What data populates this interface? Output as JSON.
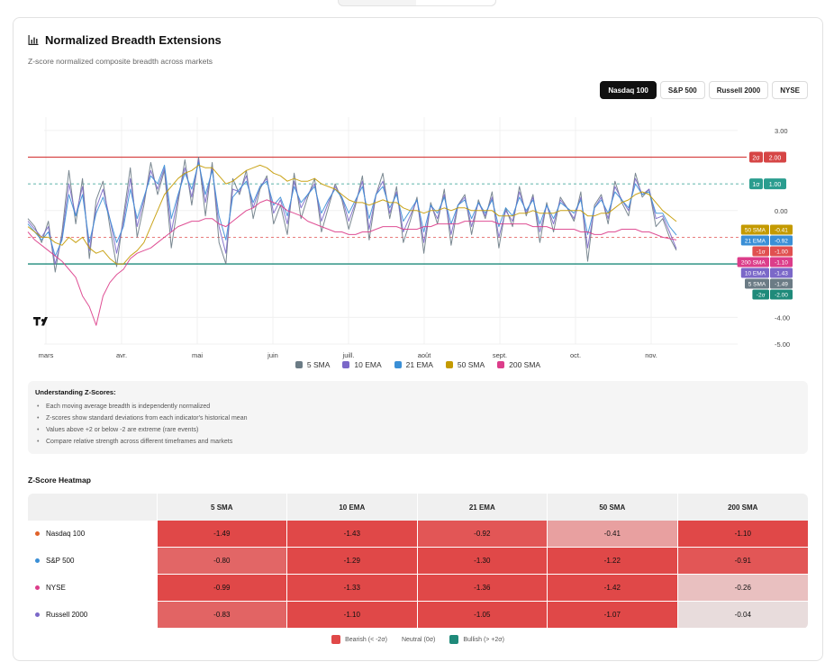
{
  "title": "Normalized Breadth Extensions",
  "subtitle": "Z-score normalized composite breadth across markets",
  "markets": [
    "Nasdaq 100",
    "S&P 500",
    "Russell 2000",
    "NYSE"
  ],
  "active_market": "Nasdaq 100",
  "colors": {
    "sma5": "#6b7b85",
    "ema10": "#7b68c8",
    "ema21": "#3a8fd6",
    "sma50": "#c49a00",
    "sma200": "#dc3d8a",
    "upper2": "#d64545",
    "upper1": "#2a9d8f",
    "lower1": "#e05050",
    "lower2": "#1f8a7a",
    "bearish": "#e04848",
    "bullish": "#1f8a7a"
  },
  "chart_data": {
    "type": "line",
    "x_ticks": [
      "mars",
      "avr.",
      "mai",
      "juin",
      "juill.",
      "août",
      "sept.",
      "oct.",
      "nov."
    ],
    "ylim": [
      -5,
      3.5
    ],
    "y_ticks": [
      "3.00",
      "0.00",
      "-4.00",
      "-5.00"
    ],
    "y_tick_values": [
      3,
      0,
      -4,
      -5
    ],
    "reference_lines": [
      {
        "label": "2σ",
        "value": "2.00",
        "y": 2,
        "style": "solid",
        "color": "#d64545"
      },
      {
        "label": "1σ",
        "value": "1.00",
        "y": 1,
        "style": "dashed",
        "color": "#2a9d8f"
      },
      {
        "label": "-1σ",
        "value": "-1.00",
        "y": -1,
        "style": "dashed",
        "color": "#e05050"
      },
      {
        "label": "-2σ",
        "value": "-2.00",
        "y": -2,
        "style": "solid",
        "color": "#1f8a7a"
      }
    ],
    "last_value_labels": [
      {
        "name": "50 SMA",
        "value": "-0.41",
        "y": -0.41,
        "color": "#c49a00"
      },
      {
        "name": "21 EMA",
        "value": "-0.92",
        "y": -0.92,
        "color": "#3a8fd6"
      },
      {
        "name": "-1σ",
        "value": "-1.00",
        "y": -1.0,
        "color": "#e05050"
      },
      {
        "name": "200 SMA",
        "value": "-1.10",
        "y": -1.1,
        "color": "#dc3d8a"
      },
      {
        "name": "10 EMA",
        "value": "-1.43",
        "y": -1.43,
        "color": "#7b68c8"
      },
      {
        "name": "5 SMA",
        "value": "-1.49",
        "y": -1.49,
        "color": "#6b7b85"
      },
      {
        "name": "-2σ",
        "value": "-2.00",
        "y": -2.0,
        "color": "#1f8a7a"
      }
    ],
    "series": [
      {
        "name": "5 SMA",
        "color": "#6b7b85",
        "values": [
          -0.3,
          -0.6,
          -1.2,
          -0.4,
          -2.3,
          -0.8,
          1.5,
          -0.5,
          1.2,
          -1.8,
          0.4,
          1.1,
          -0.6,
          -2.1,
          -0.2,
          1.6,
          -1.0,
          0.2,
          1.8,
          0.6,
          1.5,
          -1.4,
          0.3,
          1.9,
          0.2,
          2.0,
          -0.2,
          1.8,
          -1.2,
          -2.0,
          1.2,
          0.6,
          1.5,
          -0.3,
          0.8,
          1.3,
          -0.5,
          0.2,
          -0.9,
          1.4,
          -0.3,
          0.5,
          1.2,
          -0.8,
          0.1,
          1.0,
          0.4,
          -0.7,
          0.2,
          1.3,
          -1.1,
          0.6,
          1.4,
          -0.3,
          0.9,
          -1.2,
          -0.4,
          0.5,
          -1.6,
          0.3,
          -0.5,
          0.8,
          -1.3,
          0.2,
          0.6,
          -0.9,
          0.4,
          -0.3,
          0.7,
          -1.4,
          0.1,
          -0.6,
          0.9,
          -0.2,
          0.6,
          -1.2,
          0.3,
          -0.8,
          0.5,
          0.1,
          -0.4,
          0.7,
          -1.9,
          0.2,
          0.6,
          -0.5,
          1.1,
          0.3,
          -0.2,
          1.4,
          0.5,
          0.8,
          -0.6,
          -0.3,
          -1.0,
          -1.49
        ]
      },
      {
        "name": "10 EMA",
        "color": "#7b68c8",
        "values": [
          -0.4,
          -0.7,
          -1.0,
          -0.6,
          -2.0,
          -1.0,
          1.0,
          -0.2,
          0.9,
          -1.5,
          0.1,
          0.8,
          -0.3,
          -1.6,
          -0.4,
          1.2,
          -0.6,
          0.4,
          1.5,
          0.8,
          1.6,
          -0.8,
          0.5,
          1.6,
          0.5,
          1.9,
          0.3,
          1.6,
          -0.6,
          -1.6,
          0.8,
          0.7,
          1.3,
          0.1,
          0.9,
          1.2,
          -0.1,
          0.4,
          -0.5,
          1.1,
          0.1,
          0.6,
          1.0,
          -0.4,
          0.3,
          0.9,
          0.5,
          -0.4,
          0.3,
          1.1,
          -0.7,
          0.6,
          1.1,
          -0.1,
          0.7,
          -0.8,
          -0.2,
          0.4,
          -1.2,
          0.2,
          -0.3,
          0.6,
          -0.9,
          0.2,
          0.5,
          -0.6,
          0.3,
          -0.2,
          0.5,
          -1.0,
          0.0,
          -0.4,
          0.7,
          -0.1,
          0.5,
          -0.8,
          0.2,
          -0.5,
          0.4,
          0.1,
          -0.3,
          0.5,
          -1.4,
          0.1,
          0.5,
          -0.3,
          0.9,
          0.4,
          0.0,
          1.2,
          0.6,
          0.8,
          -0.3,
          -0.2,
          -0.8,
          -1.43
        ]
      },
      {
        "name": "21 EMA",
        "color": "#3a8fd6",
        "values": [
          -0.5,
          -0.8,
          -1.1,
          -0.8,
          -1.7,
          -1.1,
          0.6,
          -0.2,
          0.6,
          -1.2,
          -0.1,
          0.5,
          -0.3,
          -1.2,
          -0.6,
          0.8,
          -0.3,
          0.5,
          1.3,
          1.0,
          1.7,
          -0.3,
          0.6,
          1.4,
          0.8,
          1.8,
          0.6,
          1.5,
          -0.2,
          -1.1,
          0.5,
          0.8,
          1.1,
          0.3,
          0.9,
          1.1,
          0.2,
          0.5,
          -0.2,
          0.9,
          0.3,
          0.6,
          0.9,
          -0.1,
          0.4,
          0.8,
          0.5,
          -0.1,
          0.4,
          0.9,
          -0.3,
          0.6,
          0.9,
          0.1,
          0.6,
          -0.4,
          0.0,
          0.4,
          -0.8,
          0.2,
          -0.1,
          0.5,
          -0.5,
          0.2,
          0.4,
          -0.3,
          0.3,
          -0.1,
          0.4,
          -0.6,
          0.1,
          -0.2,
          0.5,
          0.0,
          0.4,
          -0.5,
          0.2,
          -0.3,
          0.3,
          0.1,
          -0.1,
          0.4,
          -0.9,
          0.1,
          0.4,
          -0.1,
          0.7,
          0.4,
          0.1,
          1.0,
          0.6,
          0.7,
          -0.1,
          -0.1,
          -0.6,
          -0.92
        ]
      },
      {
        "name": "50 SMA",
        "color": "#c49a00",
        "values": [
          -0.6,
          -0.8,
          -1.0,
          -1.0,
          -1.2,
          -1.3,
          -1.0,
          -1.2,
          -1.0,
          -1.4,
          -1.6,
          -1.5,
          -1.8,
          -2.0,
          -2.0,
          -1.7,
          -1.5,
          -1.2,
          -0.6,
          0.0,
          0.6,
          0.9,
          1.2,
          1.4,
          1.5,
          1.7,
          1.6,
          1.6,
          1.3,
          1.0,
          1.1,
          1.3,
          1.5,
          1.6,
          1.7,
          1.6,
          1.4,
          1.3,
          1.1,
          1.2,
          1.1,
          1.1,
          1.2,
          1.0,
          0.9,
          0.8,
          0.6,
          0.4,
          0.3,
          0.3,
          0.2,
          0.3,
          0.4,
          0.3,
          0.3,
          0.1,
          0.0,
          0.0,
          -0.1,
          0.0,
          0.0,
          0.1,
          0.0,
          0.1,
          0.1,
          0.0,
          0.0,
          0.0,
          0.0,
          -0.2,
          -0.2,
          -0.2,
          -0.1,
          -0.1,
          0.0,
          -0.1,
          -0.1,
          -0.1,
          0.0,
          0.0,
          0.0,
          0.0,
          -0.2,
          -0.2,
          -0.1,
          -0.1,
          0.1,
          0.3,
          0.4,
          0.6,
          0.7,
          0.6,
          0.3,
          0.0,
          -0.2,
          -0.41
        ]
      },
      {
        "name": "200 SMA",
        "color": "#dc3d8a",
        "values": [
          -0.8,
          -1.1,
          -1.3,
          -1.5,
          -1.7,
          -1.9,
          -2.2,
          -2.5,
          -3.2,
          -3.6,
          -4.3,
          -3.2,
          -2.7,
          -2.4,
          -2.2,
          -1.8,
          -1.6,
          -1.5,
          -1.4,
          -1.2,
          -1.0,
          -0.8,
          -0.6,
          -0.5,
          -0.4,
          -0.4,
          -0.3,
          -0.3,
          -0.5,
          -0.6,
          -0.4,
          -0.2,
          0.0,
          0.1,
          0.3,
          0.4,
          0.3,
          0.2,
          0.0,
          -0.1,
          -0.2,
          -0.4,
          -0.5,
          -0.6,
          -0.7,
          -0.8,
          -0.8,
          -0.9,
          -0.9,
          -0.8,
          -0.8,
          -0.7,
          -0.6,
          -0.6,
          -0.6,
          -0.7,
          -0.7,
          -0.7,
          -0.6,
          -0.6,
          -0.5,
          -0.5,
          -0.5,
          -0.5,
          -0.4,
          -0.4,
          -0.4,
          -0.4,
          -0.4,
          -0.5,
          -0.5,
          -0.5,
          -0.5,
          -0.5,
          -0.6,
          -0.6,
          -0.6,
          -0.7,
          -0.7,
          -0.7,
          -0.7,
          -0.8,
          -0.8,
          -0.9,
          -0.9,
          -0.8,
          -0.8,
          -0.7,
          -0.7,
          -0.7,
          -0.8,
          -0.8,
          -0.9,
          -1.0,
          -1.05,
          -1.1
        ]
      }
    ]
  },
  "legend": [
    {
      "label": "5 SMA",
      "color": "#6b7b85"
    },
    {
      "label": "10 EMA",
      "color": "#7b68c8"
    },
    {
      "label": "21 EMA",
      "color": "#3a8fd6"
    },
    {
      "label": "50 SMA",
      "color": "#c49a00"
    },
    {
      "label": "200 SMA",
      "color": "#dc3d8a"
    }
  ],
  "info": {
    "title": "Understanding Z-Scores:",
    "points": [
      "Each moving average breadth is independently normalized",
      "Z-scores show standard deviations from each indicator's historical mean",
      "Values above +2 or below -2 are extreme (rare events)",
      "Compare relative strength across different timeframes and markets"
    ]
  },
  "heatmap": {
    "title": "Z-Score Heatmap",
    "columns": [
      "5 SMA",
      "10 EMA",
      "21 EMA",
      "50 SMA",
      "200 SMA"
    ],
    "rows": [
      {
        "label": "Nasdaq 100",
        "dot": "#e0622a",
        "values": [
          "-1.49",
          "-1.43",
          "-0.92",
          "-0.41",
          "-1.10"
        ],
        "bg": [
          "#e04848",
          "#e04848",
          "#e25656",
          "#e8a0a0",
          "#e04848"
        ]
      },
      {
        "label": "S&P 500",
        "dot": "#3a8fd6",
        "values": [
          "-0.80",
          "-1.29",
          "-1.30",
          "-1.22",
          "-0.91"
        ],
        "bg": [
          "#e26666",
          "#e04848",
          "#e04848",
          "#e04848",
          "#e25656"
        ]
      },
      {
        "label": "NYSE",
        "dot": "#dc3d8a",
        "values": [
          "-0.99",
          "-1.33",
          "-1.36",
          "-1.42",
          "-0.26"
        ],
        "bg": [
          "#e04848",
          "#e04848",
          "#e04848",
          "#e04848",
          "#e9c0c0"
        ]
      },
      {
        "label": "Russell 2000",
        "dot": "#7b68c8",
        "values": [
          "-0.83",
          "-1.10",
          "-1.05",
          "-1.07",
          "-0.04"
        ],
        "bg": [
          "#e26464",
          "#e04848",
          "#e04848",
          "#e04848",
          "#e8dcdc"
        ]
      }
    ],
    "legend": [
      {
        "label": "Bearish (< -2σ)",
        "color": "#e04848"
      },
      {
        "label": "Neutral (0σ)",
        "color": ""
      },
      {
        "label": "Bullish (> +2σ)",
        "color": "#1f8a7a"
      }
    ]
  }
}
